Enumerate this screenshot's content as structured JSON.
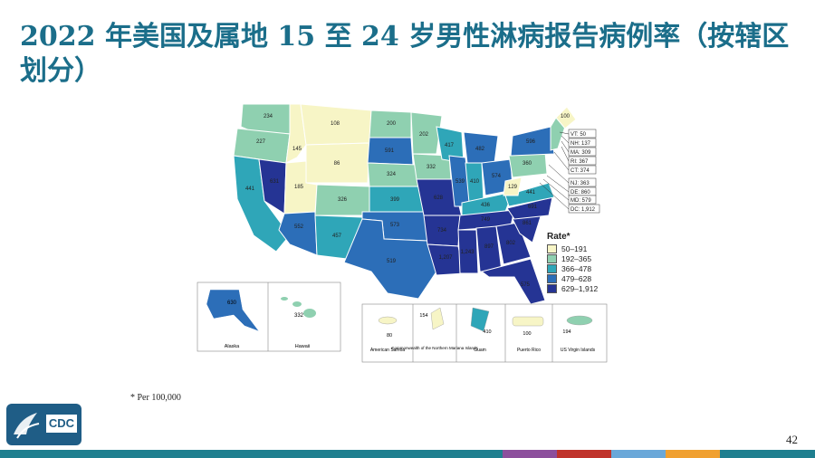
{
  "slide": {
    "title": "2022 年美国及属地 15 至 24 岁男性淋病报告病例率（按辖区划分）",
    "footnote": "* Per 100,000",
    "page_number": "42",
    "logo_text": "CDC"
  },
  "legend": {
    "title": "Rate*",
    "items": [
      {
        "label": "50–191",
        "color": "#f7f5c6"
      },
      {
        "label": "192–365",
        "color": "#8fd0b0"
      },
      {
        "label": "366–478",
        "color": "#2fa6b8"
      },
      {
        "label": "479–628",
        "color": "#2c6eb8"
      },
      {
        "label": "629–1,912",
        "color": "#253494"
      }
    ]
  },
  "state_rates": [
    {
      "state": "WA",
      "value": "234"
    },
    {
      "state": "OR",
      "value": "227"
    },
    {
      "state": "CA",
      "value": "441"
    },
    {
      "state": "NV",
      "value": "631"
    },
    {
      "state": "ID",
      "value": "145"
    },
    {
      "state": "MT",
      "value": "108"
    },
    {
      "state": "WY",
      "value": "86"
    },
    {
      "state": "UT",
      "value": "185"
    },
    {
      "state": "AZ",
      "value": "552"
    },
    {
      "state": "CO",
      "value": "326"
    },
    {
      "state": "NM",
      "value": "457"
    },
    {
      "state": "ND",
      "value": "200"
    },
    {
      "state": "SD",
      "value": "591"
    },
    {
      "state": "NE",
      "value": "324"
    },
    {
      "state": "KS",
      "value": "399"
    },
    {
      "state": "OK",
      "value": "573"
    },
    {
      "state": "TX",
      "value": "519"
    },
    {
      "state": "MN",
      "value": "202"
    },
    {
      "state": "IA",
      "value": "332"
    },
    {
      "state": "MO",
      "value": "628"
    },
    {
      "state": "AR",
      "value": "734"
    },
    {
      "state": "LA",
      "value": "1,207"
    },
    {
      "state": "WI",
      "value": "417"
    },
    {
      "state": "IL",
      "value": "539"
    },
    {
      "state": "MS",
      "value": "1,243"
    },
    {
      "state": "MI",
      "value": "482"
    },
    {
      "state": "IN",
      "value": "410"
    },
    {
      "state": "KY",
      "value": "436"
    },
    {
      "state": "TN",
      "value": "749"
    },
    {
      "state": "AL",
      "value": "897"
    },
    {
      "state": "OH",
      "value": "574"
    },
    {
      "state": "GA",
      "value": "802"
    },
    {
      "state": "FL",
      "value": "575"
    },
    {
      "state": "SC",
      "value": "861"
    },
    {
      "state": "NC",
      "value": "691"
    },
    {
      "state": "VA",
      "value": "441"
    },
    {
      "state": "WV",
      "value": "129"
    },
    {
      "state": "PA",
      "value": "360"
    },
    {
      "state": "NY",
      "value": "596"
    },
    {
      "state": "ME",
      "value": "100"
    },
    {
      "state": "AK",
      "value": "630"
    },
    {
      "state": "HI",
      "value": "332"
    }
  ],
  "callouts": [
    {
      "label": "VT: 50"
    },
    {
      "label": "NH: 137"
    },
    {
      "label": "MA: 309"
    },
    {
      "label": "RI: 367"
    },
    {
      "label": "CT: 374"
    },
    {
      "label": "NJ: 363"
    },
    {
      "label": "DE: 860"
    },
    {
      "label": "MD: 579"
    },
    {
      "label": "DC: 1,912"
    }
  ],
  "territories": [
    {
      "label": "Alaska"
    },
    {
      "label": "Hawaii"
    },
    {
      "label": "American Samoa",
      "value": "80"
    },
    {
      "label": "Commonwealth of the Northern Mariana Islands",
      "value": "154"
    },
    {
      "label": "Guam",
      "value": "410"
    },
    {
      "label": "Puerto Rico",
      "value": "100"
    },
    {
      "label": "US Virgin Islands",
      "value": "194"
    }
  ],
  "footer_colors": [
    "#1f7f8f",
    "#8c4f9c",
    "#c0332b",
    "#6aa8d9",
    "#f0a030",
    "#1f7f8f"
  ]
}
